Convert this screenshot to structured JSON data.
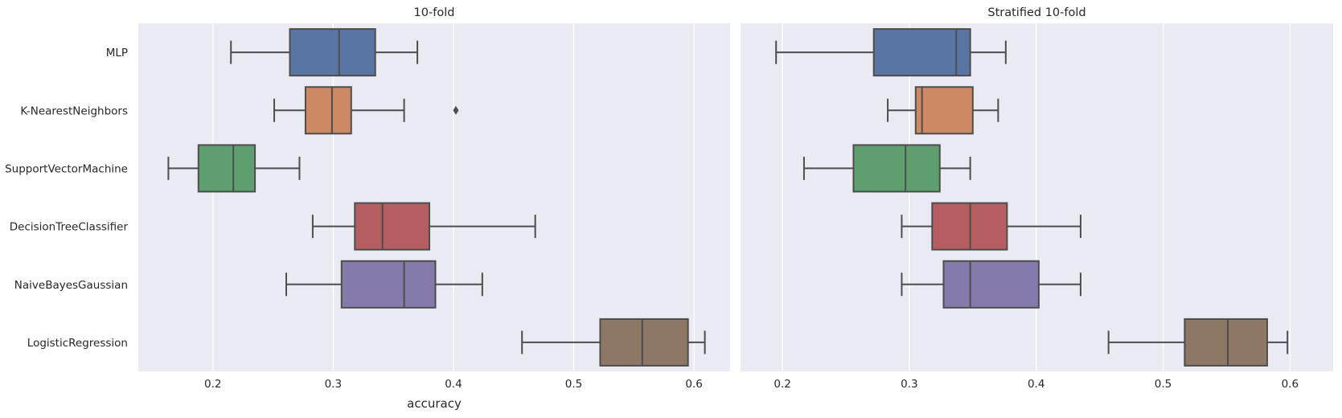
{
  "chart_data": {
    "type": "box",
    "xlabel": "accuracy",
    "categories": [
      "MLP",
      "K-NearestNeighbors",
      "SupportVectorMachine",
      "DecisionTreeClassifier",
      "NaiveBayesGaussian",
      "LogisticRegression"
    ],
    "colors": [
      "#5875A4",
      "#CC8963",
      "#5F9E6E",
      "#B55D60",
      "#857AAB",
      "#8D7866"
    ],
    "xticks": [
      0.2,
      0.3,
      0.4,
      0.5,
      0.6
    ],
    "xtick_labels": [
      "0.2",
      "0.3",
      "0.4",
      "0.5",
      "0.6"
    ],
    "grid": true,
    "panels": [
      {
        "title": "10-fold",
        "xlim": [
          0.138,
          0.63
        ],
        "boxes": [
          {
            "whisker_low": 0.215,
            "q1": 0.264,
            "median": 0.305,
            "q3": 0.335,
            "whisker_high": 0.37,
            "outliers": []
          },
          {
            "whisker_low": 0.251,
            "q1": 0.277,
            "median": 0.299,
            "q3": 0.315,
            "whisker_high": 0.359,
            "outliers": [
              0.402
            ]
          },
          {
            "whisker_low": 0.163,
            "q1": 0.188,
            "median": 0.217,
            "q3": 0.235,
            "whisker_high": 0.272,
            "outliers": []
          },
          {
            "whisker_low": 0.283,
            "q1": 0.318,
            "median": 0.341,
            "q3": 0.38,
            "whisker_high": 0.468,
            "outliers": []
          },
          {
            "whisker_low": 0.261,
            "q1": 0.307,
            "median": 0.359,
            "q3": 0.385,
            "whisker_high": 0.424,
            "outliers": []
          },
          {
            "whisker_low": 0.457,
            "q1": 0.522,
            "median": 0.557,
            "q3": 0.595,
            "whisker_high": 0.609,
            "outliers": []
          }
        ]
      },
      {
        "title": "Stratified 10-fold",
        "xlim": [
          0.167,
          0.634
        ],
        "boxes": [
          {
            "whisker_low": 0.195,
            "q1": 0.272,
            "median": 0.337,
            "q3": 0.348,
            "whisker_high": 0.376,
            "outliers": []
          },
          {
            "whisker_low": 0.283,
            "q1": 0.305,
            "median": 0.31,
            "q3": 0.35,
            "whisker_high": 0.37,
            "outliers": []
          },
          {
            "whisker_low": 0.217,
            "q1": 0.256,
            "median": 0.297,
            "q3": 0.324,
            "whisker_high": 0.348,
            "outliers": []
          },
          {
            "whisker_low": 0.294,
            "q1": 0.318,
            "median": 0.348,
            "q3": 0.377,
            "whisker_high": 0.435,
            "outliers": []
          },
          {
            "whisker_low": 0.294,
            "q1": 0.327,
            "median": 0.348,
            "q3": 0.402,
            "whisker_high": 0.435,
            "outliers": []
          },
          {
            "whisker_low": 0.457,
            "q1": 0.517,
            "median": 0.551,
            "q3": 0.582,
            "whisker_high": 0.598,
            "outliers": []
          }
        ]
      }
    ]
  }
}
